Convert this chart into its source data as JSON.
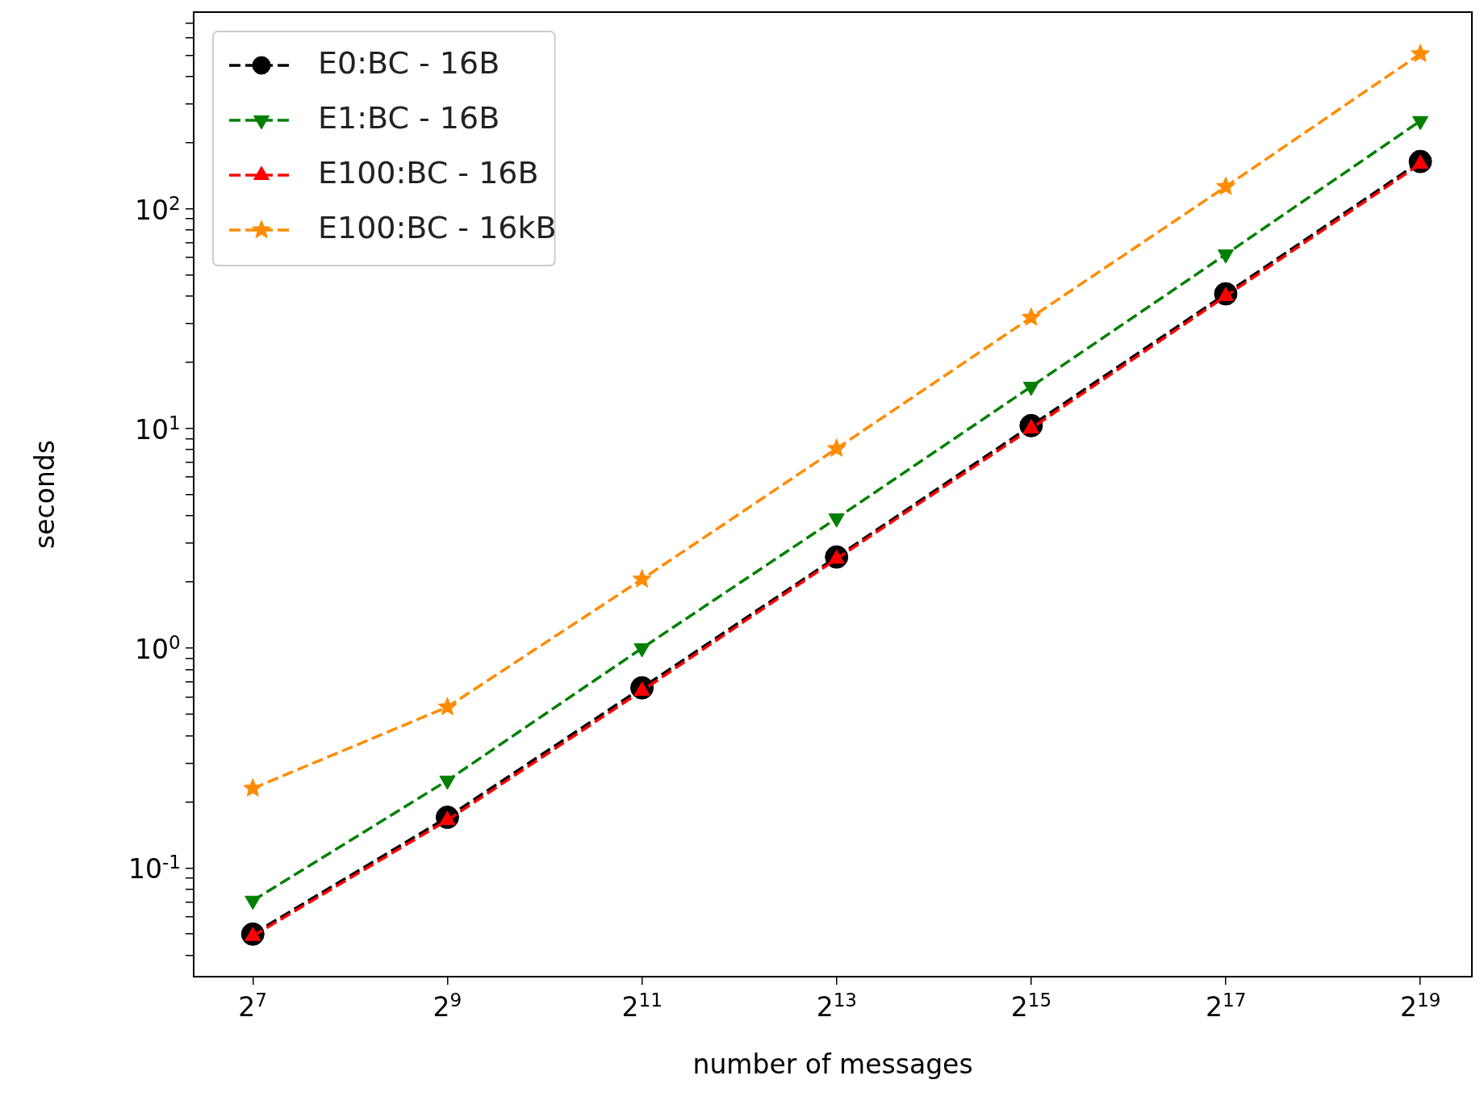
{
  "chart_data": {
    "type": "line",
    "xlabel": "number of messages",
    "ylabel": "seconds",
    "log": "xy",
    "grid": false,
    "legend": "top left",
    "line_style": "dashed",
    "x": [
      128,
      512,
      2048,
      8192,
      32768,
      131072,
      524288
    ],
    "xlim": [
      84,
      757000
    ],
    "xticks": [
      {
        "value": 128,
        "label": "2$^{7}$"
      },
      {
        "value": 512,
        "label": "2$^{9}$"
      },
      {
        "value": 2048,
        "label": "2$^{11}$"
      },
      {
        "value": 8192,
        "label": "2$^{13}$"
      },
      {
        "value": 32768,
        "label": "2$^{15}$"
      },
      {
        "value": 131072,
        "label": "2$^{17}$"
      },
      {
        "value": 524288,
        "label": "2$^{19}$"
      }
    ],
    "ylim": [
      0.032,
      785
    ],
    "yticks": [
      {
        "value": 0.04,
        "label": null
      },
      {
        "value": 0.05,
        "label": null
      },
      {
        "value": 0.06,
        "label": null
      },
      {
        "value": 0.07,
        "label": null
      },
      {
        "value": 0.08,
        "label": null
      },
      {
        "value": 0.09,
        "label": null
      },
      {
        "value": 0.1,
        "label": "10$^{-1}$"
      },
      {
        "value": 0.2,
        "label": null
      },
      {
        "value": 0.3,
        "label": null
      },
      {
        "value": 0.4,
        "label": null
      },
      {
        "value": 0.5,
        "label": null
      },
      {
        "value": 0.6,
        "label": null
      },
      {
        "value": 0.7,
        "label": null
      },
      {
        "value": 0.8,
        "label": null
      },
      {
        "value": 0.9,
        "label": null
      },
      {
        "value": 1,
        "label": "10$^{0}$"
      },
      {
        "value": 2,
        "label": null
      },
      {
        "value": 3,
        "label": null
      },
      {
        "value": 4,
        "label": null
      },
      {
        "value": 5,
        "label": null
      },
      {
        "value": 6,
        "label": null
      },
      {
        "value": 7,
        "label": null
      },
      {
        "value": 8,
        "label": null
      },
      {
        "value": 9,
        "label": null
      },
      {
        "value": 10,
        "label": "10$^{1}$"
      },
      {
        "value": 20,
        "label": null
      },
      {
        "value": 30,
        "label": null
      },
      {
        "value": 40,
        "label": null
      },
      {
        "value": 50,
        "label": null
      },
      {
        "value": 60,
        "label": null
      },
      {
        "value": 70,
        "label": null
      },
      {
        "value": 80,
        "label": null
      },
      {
        "value": 90,
        "label": null
      },
      {
        "value": 100,
        "label": "10$^{2}$"
      },
      {
        "value": 200,
        "label": null
      },
      {
        "value": 300,
        "label": null
      },
      {
        "value": 400,
        "label": null
      },
      {
        "value": 500,
        "label": null
      },
      {
        "value": 600,
        "label": null
      },
      {
        "value": 700,
        "label": null
      }
    ],
    "series": [
      {
        "name": "E0:BC - 16B",
        "color": "#000000",
        "marker": "circle",
        "values": [
          0.05,
          0.17,
          0.66,
          2.6,
          10.3,
          41,
          164
        ]
      },
      {
        "name": "E1:BC - 16B",
        "color": "#008000",
        "marker": "triangle_down",
        "values": [
          0.071,
          0.25,
          1.0,
          3.9,
          15.5,
          62,
          251
        ]
      },
      {
        "name": "E100:BC - 16B",
        "color": "#ff0000",
        "marker": "triangle",
        "values": [
          0.049,
          0.165,
          0.64,
          2.55,
          10,
          40,
          160
        ]
      },
      {
        "name": "E100:BC - 16kB",
        "color": "#ff8c00",
        "marker": "star",
        "values": [
          0.23,
          0.54,
          2.06,
          8.1,
          32,
          126,
          507
        ]
      }
    ]
  }
}
